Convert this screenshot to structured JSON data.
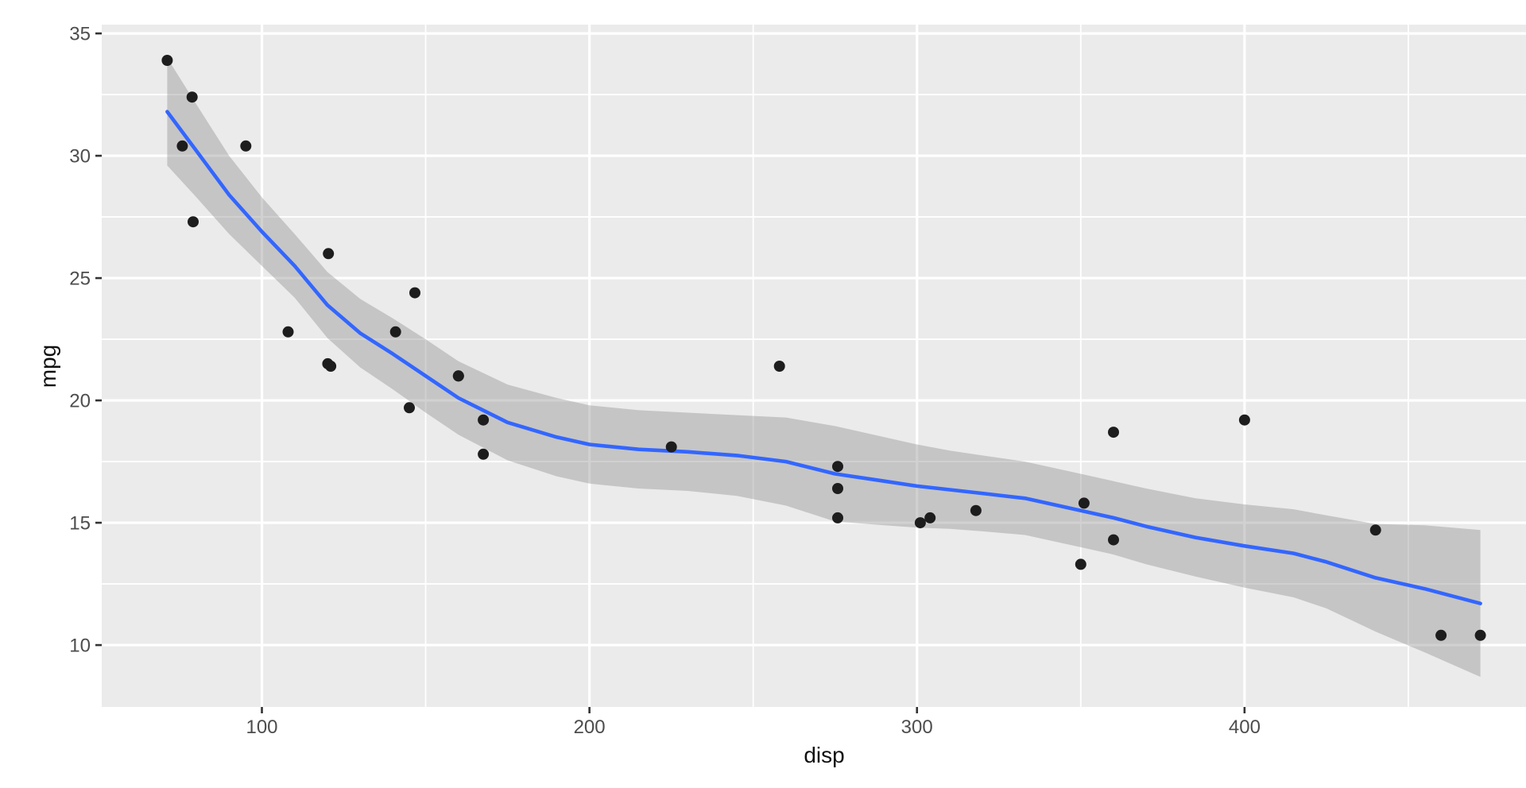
{
  "chart_data": {
    "type": "scatter",
    "title": "",
    "xlabel": "disp",
    "ylabel": "mpg",
    "legend": "none",
    "grid": true,
    "xlim": [
      51.1,
      492.0
    ],
    "ylim": [
      7.47,
      35.36
    ],
    "x_ticks": [
      100,
      200,
      300,
      400
    ],
    "x_tick_labels": [
      "100",
      "200",
      "300",
      "400"
    ],
    "x_minor_breaks": [
      150,
      250,
      350,
      450
    ],
    "y_ticks": [
      10,
      15,
      20,
      25,
      30,
      35
    ],
    "y_tick_labels": [
      "10",
      "15",
      "20",
      "25",
      "30",
      "35"
    ],
    "y_minor_breaks": [
      12.5,
      17.5,
      22.5,
      27.5,
      32.5
    ],
    "points": [
      {
        "disp": 160.0,
        "mpg": 21.0
      },
      {
        "disp": 160.0,
        "mpg": 21.0
      },
      {
        "disp": 108.0,
        "mpg": 22.8
      },
      {
        "disp": 258.0,
        "mpg": 21.4
      },
      {
        "disp": 360.0,
        "mpg": 18.7
      },
      {
        "disp": 225.0,
        "mpg": 18.1
      },
      {
        "disp": 360.0,
        "mpg": 14.3
      },
      {
        "disp": 146.7,
        "mpg": 24.4
      },
      {
        "disp": 140.8,
        "mpg": 22.8
      },
      {
        "disp": 167.6,
        "mpg": 19.2
      },
      {
        "disp": 167.6,
        "mpg": 17.8
      },
      {
        "disp": 275.8,
        "mpg": 16.4
      },
      {
        "disp": 275.8,
        "mpg": 17.3
      },
      {
        "disp": 275.8,
        "mpg": 15.2
      },
      {
        "disp": 472.0,
        "mpg": 10.4
      },
      {
        "disp": 460.0,
        "mpg": 10.4
      },
      {
        "disp": 440.0,
        "mpg": 14.7
      },
      {
        "disp": 78.7,
        "mpg": 32.4
      },
      {
        "disp": 75.7,
        "mpg": 30.4
      },
      {
        "disp": 71.1,
        "mpg": 33.9
      },
      {
        "disp": 120.1,
        "mpg": 21.5
      },
      {
        "disp": 318.0,
        "mpg": 15.5
      },
      {
        "disp": 304.0,
        "mpg": 15.2
      },
      {
        "disp": 350.0,
        "mpg": 13.3
      },
      {
        "disp": 400.0,
        "mpg": 19.2
      },
      {
        "disp": 79.0,
        "mpg": 27.3
      },
      {
        "disp": 120.3,
        "mpg": 26.0
      },
      {
        "disp": 95.1,
        "mpg": 30.4
      },
      {
        "disp": 351.0,
        "mpg": 15.8
      },
      {
        "disp": 145.0,
        "mpg": 19.7
      },
      {
        "disp": 301.0,
        "mpg": 15.0
      },
      {
        "disp": 121.0,
        "mpg": 21.4
      }
    ],
    "smooth": {
      "method": "loess",
      "x": [
        71.1,
        80,
        90,
        100,
        110,
        120,
        130,
        140,
        150,
        160,
        175,
        190,
        200,
        215,
        230,
        245,
        260,
        275,
        290,
        300,
        310,
        320,
        333,
        350,
        360,
        370,
        385,
        400,
        415,
        425,
        440,
        455,
        472
      ],
      "y_fit": [
        31.8,
        30.2,
        28.4,
        26.9,
        25.5,
        23.9,
        22.75,
        21.9,
        21.0,
        20.1,
        19.1,
        18.5,
        18.2,
        18.0,
        17.9,
        17.75,
        17.5,
        17.0,
        16.7,
        16.5,
        16.35,
        16.2,
        16.0,
        15.5,
        15.2,
        14.85,
        14.4,
        14.05,
        13.75,
        13.4,
        12.75,
        12.3,
        11.7
      ],
      "ci_upper": [
        34.0,
        32.1,
        30.0,
        28.3,
        26.8,
        25.25,
        24.15,
        23.35,
        22.5,
        21.6,
        20.65,
        20.1,
        19.8,
        19.6,
        19.5,
        19.4,
        19.3,
        18.95,
        18.5,
        18.2,
        17.95,
        17.75,
        17.5,
        17.0,
        16.7,
        16.4,
        16.0,
        15.75,
        15.55,
        15.3,
        14.95,
        14.9,
        14.7
      ],
      "ci_lower": [
        29.6,
        28.3,
        26.8,
        25.5,
        24.2,
        22.55,
        21.35,
        20.45,
        19.5,
        18.6,
        17.55,
        16.9,
        16.6,
        16.4,
        16.3,
        16.1,
        15.7,
        15.05,
        14.9,
        14.8,
        14.75,
        14.65,
        14.5,
        14.0,
        13.7,
        13.3,
        12.8,
        12.35,
        11.95,
        11.5,
        10.55,
        9.7,
        8.7
      ]
    },
    "colors": {
      "panel_background": "#EBEBEB",
      "gridline": "#FFFFFF",
      "point": "#1D1D1D",
      "smooth_line": "#3366FF",
      "ribbon": "rgba(140,140,140,0.40)",
      "tick_label": "#4D4D4D",
      "axis_title": "#111111",
      "tick_mark": "#333333"
    }
  }
}
